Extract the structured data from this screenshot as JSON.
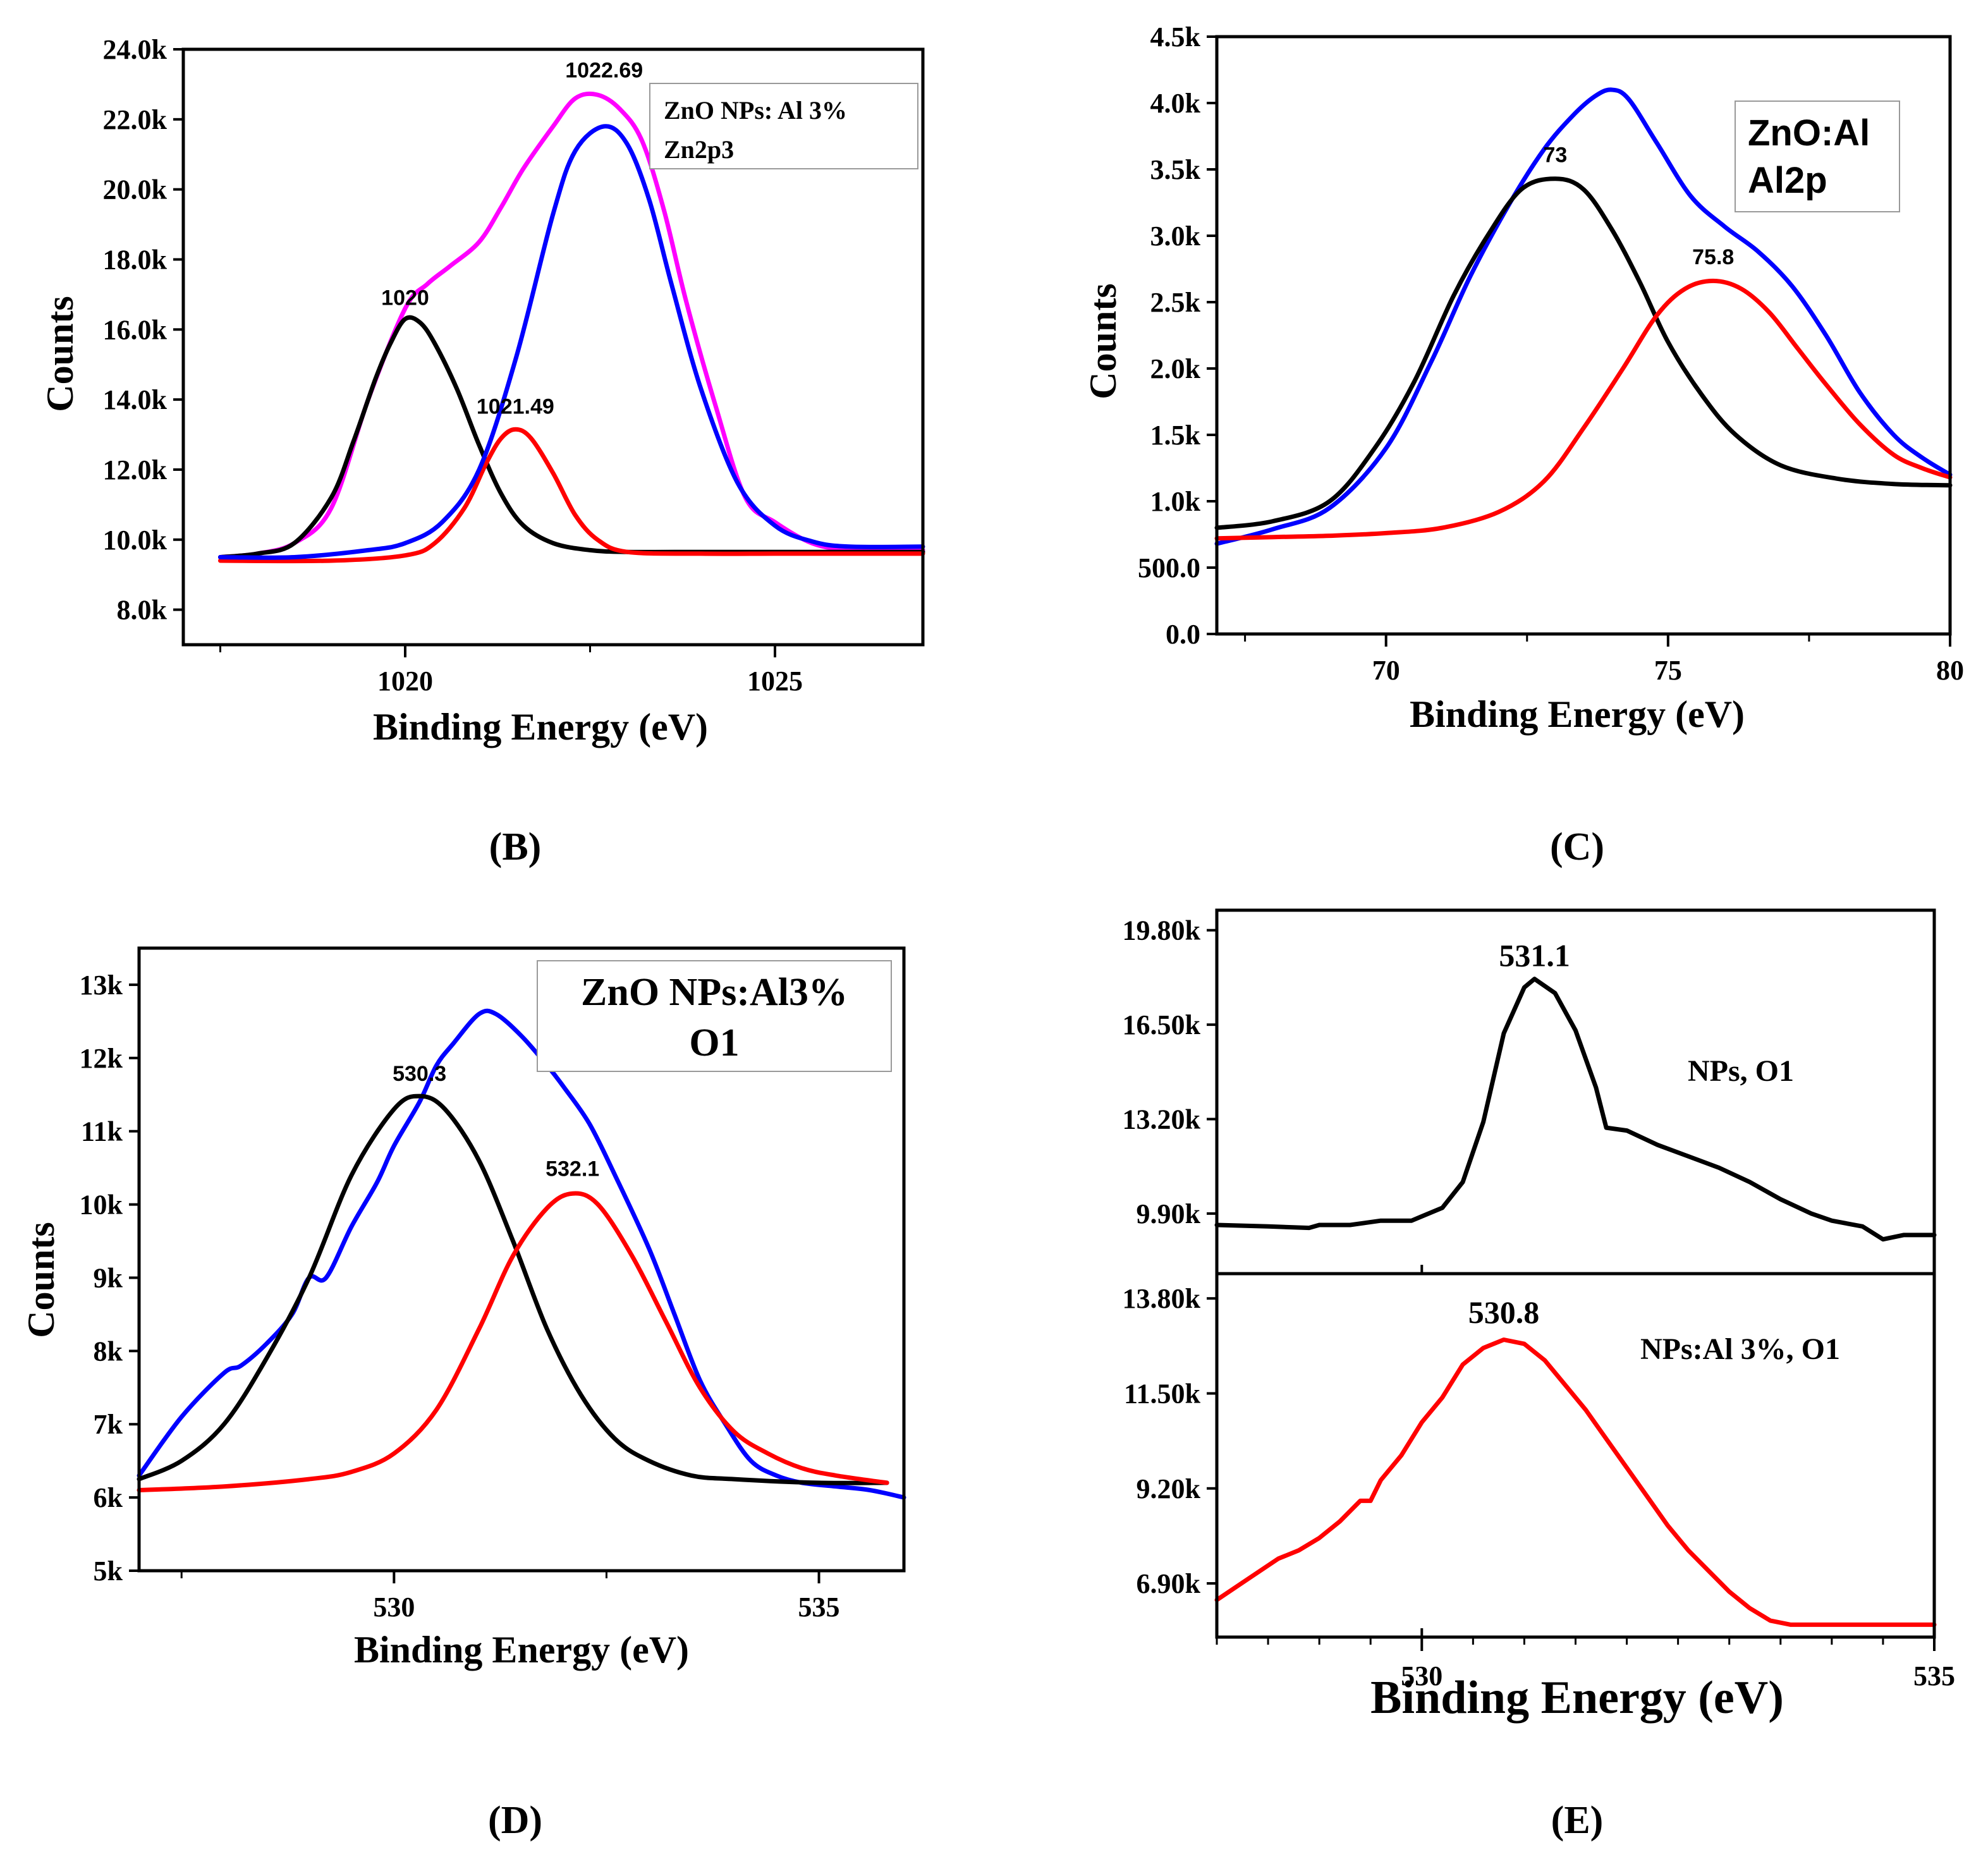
{
  "chart_data": [
    {
      "panel_label": "(B)",
      "type": "line",
      "legend": [
        "ZnO NPs: Al 3%",
        "Zn2p3"
      ],
      "xlabel": "Binding Energy (eV)",
      "ylabel": "Counts",
      "xlim": [
        1017,
        1027
      ],
      "ylim": [
        7000,
        24000
      ],
      "xticks": [
        1020,
        1025
      ],
      "xtick_labels": [
        "1020",
        "1025"
      ],
      "yticks": [
        8000,
        10000,
        12000,
        14000,
        16000,
        18000,
        20000,
        22000,
        24000
      ],
      "ytick_labels": [
        "8.0k",
        "10.0k",
        "12.0k",
        "14.0k",
        "16.0k",
        "18.0k",
        "20.0k",
        "22.0k",
        "24.0k"
      ],
      "annotations": [
        {
          "text": "1020",
          "x": 1020.0,
          "y": 16300
        },
        {
          "text": "1021.49",
          "x": 1021.49,
          "y": 13200
        },
        {
          "text": "1022.69",
          "x": 1022.69,
          "y": 22800
        }
      ],
      "series": [
        {
          "name": "envelope",
          "color": "#ff00ff",
          "x": [
            1017.5,
            1018,
            1018.5,
            1019,
            1019.5,
            1020,
            1020.3,
            1020.6,
            1021,
            1021.3,
            1021.6,
            1022,
            1022.3,
            1022.6,
            1022.9,
            1023.2,
            1023.5,
            1023.8,
            1024.2,
            1024.6,
            1025,
            1025.5,
            1026,
            1026.5,
            1027
          ],
          "y": [
            9500,
            9600,
            9900,
            10900,
            14000,
            16600,
            17300,
            17800,
            18500,
            19500,
            20600,
            21800,
            22600,
            22700,
            22300,
            21400,
            19400,
            16800,
            13800,
            11200,
            10500,
            9900,
            9700,
            9700,
            9700
          ]
        },
        {
          "name": "peak 1020",
          "color": "#000000",
          "x": [
            1017.5,
            1018,
            1018.5,
            1019,
            1019.3,
            1019.6,
            1019.8,
            1020,
            1020.2,
            1020.4,
            1020.7,
            1021,
            1021.3,
            1021.6,
            1022,
            1022.5,
            1023,
            1024,
            1025,
            1026,
            1027
          ],
          "y": [
            9500,
            9600,
            9900,
            11200,
            12800,
            14600,
            15600,
            16300,
            16200,
            15600,
            14300,
            12700,
            11300,
            10400,
            9900,
            9700,
            9650,
            9650,
            9650,
            9650,
            9650
          ]
        },
        {
          "name": "peak 1021.49",
          "color": "#ff0000",
          "x": [
            1017.5,
            1019,
            1020,
            1020.4,
            1020.8,
            1021.1,
            1021.3,
            1021.49,
            1021.7,
            1022,
            1022.3,
            1022.6,
            1023,
            1024,
            1025,
            1026,
            1027
          ],
          "y": [
            9400,
            9400,
            9550,
            9900,
            10900,
            12200,
            12900,
            13150,
            12900,
            11900,
            10700,
            10000,
            9650,
            9600,
            9600,
            9600,
            9600
          ]
        },
        {
          "name": "peak 1022.69",
          "color": "#0000ff",
          "x": [
            1017.5,
            1018.5,
            1019.5,
            1020,
            1020.5,
            1021,
            1021.5,
            1022,
            1022.3,
            1022.69,
            1023,
            1023.3,
            1023.6,
            1024,
            1024.5,
            1025,
            1025.5,
            1026,
            1027
          ],
          "y": [
            9500,
            9500,
            9700,
            9900,
            10500,
            12000,
            15200,
            19300,
            21100,
            21800,
            21300,
            19700,
            17300,
            14300,
            11600,
            10400,
            9950,
            9800,
            9800
          ]
        }
      ]
    },
    {
      "panel_label": "(C)",
      "type": "line",
      "legend": [
        "ZnO:Al",
        "Al2p"
      ],
      "xlabel": "Binding Energy (eV)",
      "ylabel": "Counts",
      "xlim": [
        67,
        80
      ],
      "ylim": [
        0,
        4500
      ],
      "xticks": [
        70,
        75,
        80
      ],
      "xtick_labels": [
        "70",
        "75",
        "80"
      ],
      "yticks": [
        0,
        500,
        1000,
        1500,
        2000,
        2500,
        3000,
        3500,
        4000,
        4500
      ],
      "ytick_labels": [
        "0.0",
        "500.0",
        "1.0k",
        "1.5k",
        "2.0k",
        "2.5k",
        "3.0k",
        "3.5k",
        "4.0k",
        "4.5k"
      ],
      "annotations": [
        {
          "text": "73",
          "x": 73.0,
          "y": 3450
        },
        {
          "text": "75.8",
          "x": 75.8,
          "y": 2680
        }
      ],
      "series": [
        {
          "name": "envelope",
          "color": "#0000ff",
          "x": [
            67,
            68,
            69,
            70,
            70.8,
            71.5,
            72.2,
            72.8,
            73.3,
            73.7,
            74,
            74.3,
            74.8,
            75.4,
            76,
            76.6,
            77.2,
            77.8,
            78.4,
            79,
            79.5,
            80
          ],
          "y": [
            680,
            790,
            950,
            1400,
            2050,
            2700,
            3250,
            3650,
            3900,
            4050,
            4100,
            4030,
            3700,
            3300,
            3070,
            2880,
            2620,
            2250,
            1820,
            1500,
            1330,
            1200
          ]
        },
        {
          "name": "peak 73",
          "color": "#000000",
          "x": [
            67,
            68,
            69,
            69.8,
            70.5,
            71.2,
            71.8,
            72.4,
            73,
            73.5,
            74,
            74.5,
            75,
            75.6,
            76.2,
            77,
            78,
            79,
            80
          ],
          "y": [
            800,
            850,
            1000,
            1400,
            1900,
            2550,
            3000,
            3350,
            3430,
            3350,
            3050,
            2650,
            2200,
            1800,
            1500,
            1270,
            1170,
            1130,
            1120
          ]
        },
        {
          "name": "peak 75.8",
          "color": "#ff0000",
          "x": [
            67,
            68,
            69,
            70,
            71,
            72,
            72.8,
            73.5,
            74.2,
            74.8,
            75.3,
            75.8,
            76.3,
            76.8,
            77.3,
            77.8,
            78.4,
            79,
            79.5,
            80
          ],
          "y": [
            720,
            730,
            740,
            760,
            800,
            920,
            1150,
            1550,
            2000,
            2400,
            2600,
            2660,
            2600,
            2420,
            2150,
            1880,
            1580,
            1350,
            1250,
            1180
          ]
        }
      ]
    },
    {
      "panel_label": "(D)",
      "type": "line",
      "legend": [
        "ZnO NPs:Al3%",
        "O1"
      ],
      "xlabel": "Binding Energy (eV)",
      "ylabel": "Counts",
      "xlim": [
        527,
        536
      ],
      "ylim": [
        5000,
        13500
      ],
      "xticks": [
        530,
        535
      ],
      "xtick_labels": [
        "530",
        "535"
      ],
      "yticks": [
        5000,
        6000,
        7000,
        8000,
        9000,
        10000,
        11000,
        12000,
        13000
      ],
      "ytick_labels": [
        "5k",
        "6k",
        "7k",
        "8k",
        "9k",
        "10k",
        "11k",
        "12k",
        "13k"
      ],
      "annotations": [
        {
          "text": "530.3",
          "x": 530.3,
          "y": 11500
        },
        {
          "text": "532.1",
          "x": 532.1,
          "y": 10200
        }
      ],
      "series": [
        {
          "name": "envelope",
          "color": "#0000ff",
          "x": [
            527,
            527.5,
            528,
            528.2,
            528.5,
            528.8,
            529,
            529.2,
            529.5,
            529.8,
            530,
            530.3,
            530.5,
            530.7,
            531,
            531.2,
            531.5,
            531.8,
            532,
            532.3,
            532.6,
            533,
            533.3,
            533.6,
            533.9,
            534.2,
            534.5,
            534.8,
            535.2,
            535.6,
            536
          ],
          "y": [
            6300,
            7100,
            7700,
            7800,
            8100,
            8500,
            9000,
            9000,
            9700,
            10300,
            10800,
            11400,
            11900,
            12200,
            12600,
            12600,
            12300,
            11900,
            11600,
            11100,
            10400,
            9400,
            8500,
            7600,
            7000,
            6500,
            6300,
            6200,
            6150,
            6100,
            6000
          ]
        },
        {
          "name": "peak 530.3",
          "color": "#000000",
          "x": [
            527,
            527.5,
            528,
            528.5,
            529,
            529.5,
            530,
            530.3,
            530.6,
            531,
            531.4,
            531.8,
            532.2,
            532.6,
            533,
            533.5,
            534,
            535,
            535.8
          ],
          "y": [
            6250,
            6500,
            7000,
            7900,
            9000,
            10400,
            11300,
            11480,
            11300,
            10600,
            9500,
            8300,
            7400,
            6800,
            6500,
            6300,
            6250,
            6200,
            6200
          ]
        },
        {
          "name": "peak 532.1",
          "color": "#ff0000",
          "x": [
            527,
            528,
            529,
            529.5,
            530,
            530.5,
            531,
            531.4,
            531.8,
            532.1,
            532.4,
            532.8,
            533.2,
            533.6,
            534,
            534.4,
            534.8,
            535.2,
            535.8
          ],
          "y": [
            6100,
            6150,
            6250,
            6350,
            6600,
            7200,
            8300,
            9300,
            9950,
            10150,
            10000,
            9300,
            8400,
            7500,
            6900,
            6600,
            6400,
            6300,
            6200
          ]
        }
      ]
    },
    {
      "panel_label": "(E)",
      "type": "line",
      "xlabel": "Binding Energy (eV)",
      "xlim": [
        528,
        535
      ],
      "xticks": [
        530,
        535
      ],
      "xtick_labels": [
        "530",
        "535"
      ],
      "subplots": [
        {
          "legend": "NPs, O1",
          "ylim": [
            7800,
            20500
          ],
          "yticks": [
            9900,
            13200,
            16500,
            19800
          ],
          "ytick_labels": [
            "9.90k",
            "13.20k",
            "16.50k",
            "19.80k"
          ],
          "annotations": [
            {
              "text": "531.1",
              "x": 531.1,
              "y": 18100
            }
          ],
          "series": [
            {
              "name": "NPs, O1",
              "color": "#000000",
              "x": [
                528,
                528.5,
                528.9,
                529,
                529.3,
                529.6,
                529.9,
                530,
                530.2,
                530.4,
                530.6,
                530.8,
                531,
                531.1,
                531.3,
                531.5,
                531.7,
                531.8,
                532,
                532.3,
                532.6,
                532.9,
                533.2,
                533.5,
                533.8,
                534,
                534.3,
                534.5,
                534.7,
                535
              ],
              "y": [
                9500,
                9450,
                9400,
                9500,
                9500,
                9650,
                9650,
                9800,
                10100,
                11000,
                13100,
                16200,
                17800,
                18100,
                17600,
                16300,
                14300,
                12900,
                12800,
                12300,
                11900,
                11500,
                11000,
                10400,
                9900,
                9650,
                9450,
                9000,
                9150,
                9150
              ]
            }
          ]
        },
        {
          "legend": "NPs:Al 3%, O1",
          "ylim": [
            5600,
            14400
          ],
          "yticks": [
            6900,
            9200,
            11500,
            13800
          ],
          "ytick_labels": [
            "6.90k",
            "9.20k",
            "11.50k",
            "13.80k"
          ],
          "annotations": [
            {
              "text": "530.8",
              "x": 530.8,
              "y": 12900
            }
          ],
          "series": [
            {
              "name": "NPs:Al 3%, O1",
              "color": "#ff0000",
              "x": [
                528,
                528.3,
                528.6,
                528.8,
                529,
                529.2,
                529.4,
                529.5,
                529.6,
                529.8,
                530,
                530.2,
                530.4,
                530.6,
                530.8,
                531,
                531.2,
                531.4,
                531.6,
                531.8,
                532,
                532.2,
                532.4,
                532.6,
                532.8,
                533,
                533.2,
                533.4,
                533.6,
                533.8,
                534,
                534.2,
                534.4,
                534.6,
                534.8,
                535
              ],
              "y": [
                6500,
                7000,
                7500,
                7700,
                8000,
                8400,
                8900,
                8900,
                9400,
                10000,
                10800,
                11400,
                12200,
                12600,
                12800,
                12700,
                12300,
                11700,
                11100,
                10400,
                9700,
                9000,
                8300,
                7700,
                7200,
                6700,
                6300,
                6000,
                5900,
                5900,
                5900,
                5900,
                5900,
                5900,
                5900,
                5900
              ]
            }
          ]
        }
      ]
    }
  ]
}
